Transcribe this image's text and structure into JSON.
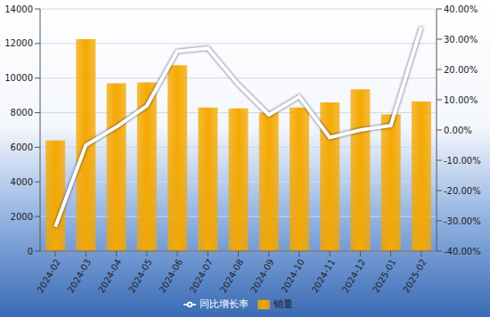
{
  "chart_data": {
    "type": "bar",
    "categories": [
      "2024-02",
      "2024-03",
      "2024-04",
      "2024-05",
      "2024-06",
      "2024-07",
      "2024-08",
      "2024-09",
      "2024-10",
      "2024-11",
      "2024-12",
      "2025-01",
      "2025-02"
    ],
    "series": [
      {
        "name": "销量",
        "type": "bar",
        "color": "#f5a800",
        "values": [
          6400,
          12250,
          9700,
          9750,
          10750,
          8300,
          8250,
          8000,
          8300,
          8600,
          9350,
          7900,
          8650
        ]
      },
      {
        "name": "同比增长率",
        "type": "line",
        "color": "#ffffff",
        "axis": "y2",
        "values": [
          -32,
          -5,
          1,
          8,
          26,
          27,
          15,
          5,
          11,
          -2.5,
          0,
          1.5,
          34
        ]
      }
    ],
    "ylim": [
      0,
      14000
    ],
    "yticks": [
      0,
      2000,
      4000,
      6000,
      8000,
      10000,
      12000,
      14000
    ],
    "y2lim": [
      -40,
      40
    ],
    "y2ticks": [
      {
        "value": -40,
        "label": "-40.00%"
      },
      {
        "value": -30,
        "label": "-30.00%"
      },
      {
        "value": -20,
        "label": "-20.00%"
      },
      {
        "value": -10,
        "label": "-10.00%"
      },
      {
        "value": 0,
        "label": "0.00%"
      },
      {
        "value": 10,
        "label": "10.00%"
      },
      {
        "value": 20,
        "label": "20.00%"
      },
      {
        "value": 30,
        "label": "30.00%"
      },
      {
        "value": 40,
        "label": "40.00%"
      }
    ],
    "grid": true,
    "legend": "bottom"
  }
}
